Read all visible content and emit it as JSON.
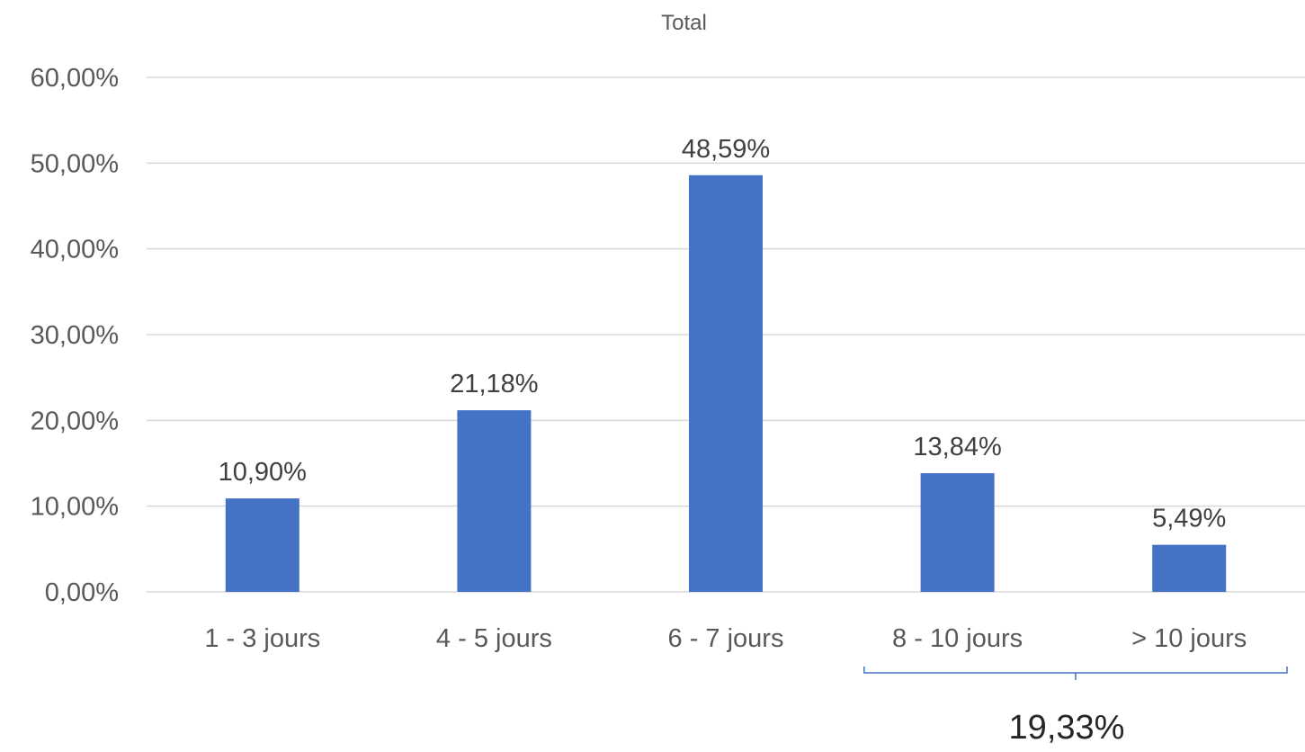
{
  "chart_data": {
    "type": "bar",
    "title": "Total",
    "categories": [
      "1 - 3 jours",
      "4 - 5 jours",
      "6 - 7 jours",
      "8 - 10 jours",
      "> 10 jours"
    ],
    "values": [
      10.9,
      21.18,
      48.59,
      13.84,
      5.49
    ],
    "data_labels": [
      "10,90%",
      "21,18%",
      "48,59%",
      "13,84%",
      "5,49%"
    ],
    "ylim": [
      0,
      60
    ],
    "yticks": [
      0,
      10,
      20,
      30,
      40,
      50,
      60
    ],
    "ytick_labels": [
      "0,00%",
      "10,00%",
      "20,00%",
      "30,00%",
      "40,00%",
      "50,00%",
      "60,00%"
    ],
    "grid": true,
    "legend": "none",
    "bar_color": "#4472C4",
    "grid_color": "#D9D9D9",
    "annotation": {
      "text": "19,33%",
      "spans_categories": [
        "8 - 10 jours",
        "> 10 jours"
      ],
      "bracket_color": "#4472C4"
    }
  }
}
